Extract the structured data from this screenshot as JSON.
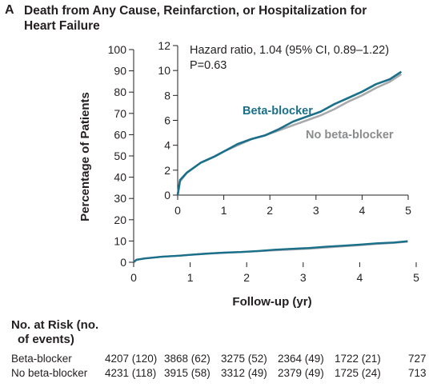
{
  "panel": {
    "letter": "A",
    "title": "Death from Any Cause, Reinfarction, or Hospitalization for Heart Failure"
  },
  "chart_data": {
    "type": "line",
    "title": "Death from Any Cause, Reinfarction, or Hospitalization for Heart Failure",
    "xlabel": "Follow-up (yr)",
    "ylabel": "Percentage of Patients",
    "xlim": [
      0,
      5
    ],
    "ylim": [
      0,
      100
    ],
    "xticks": [
      "0",
      "1",
      "2",
      "3",
      "4",
      "5"
    ],
    "yticks": [
      "0",
      "10",
      "20",
      "30",
      "40",
      "50",
      "60",
      "70",
      "80",
      "90",
      "100"
    ],
    "series": [
      {
        "name": "Beta-blocker",
        "color": "#1a6f8a",
        "x": [
          0,
          0.05,
          0.2,
          0.5,
          0.8,
          1.0,
          1.3,
          1.6,
          1.9,
          2.2,
          2.5,
          2.8,
          3.1,
          3.4,
          3.7,
          4.0,
          4.3,
          4.6,
          4.85
        ],
        "y": [
          0,
          1.2,
          1.8,
          2.6,
          3.1,
          3.5,
          4.1,
          4.5,
          4.8,
          5.3,
          5.9,
          6.3,
          6.7,
          7.3,
          7.8,
          8.3,
          8.9,
          9.3,
          9.9
        ]
      },
      {
        "name": "No beta-blocker",
        "color": "#a7a9ac",
        "x": [
          0,
          0.05,
          0.2,
          0.5,
          0.8,
          1.0,
          1.3,
          1.6,
          1.9,
          2.2,
          2.5,
          2.8,
          3.1,
          3.4,
          3.7,
          4.0,
          4.3,
          4.6,
          4.85
        ],
        "y": [
          0,
          1.1,
          1.8,
          2.6,
          3.1,
          3.5,
          4.0,
          4.5,
          4.8,
          5.2,
          5.6,
          6.0,
          6.4,
          6.9,
          7.5,
          8.0,
          8.6,
          9.1,
          9.7
        ]
      }
    ],
    "inset": {
      "xlim": [
        0,
        5
      ],
      "ylim": [
        0,
        12
      ],
      "xticks": [
        "0",
        "1",
        "2",
        "3",
        "4",
        "5"
      ],
      "yticks": [
        "0",
        "2",
        "4",
        "6",
        "8",
        "10",
        "12"
      ],
      "annotation_line1": "Hazard ratio, 1.04 (95% CI, 0.89–1.22)",
      "annotation_line2": "P=0.63",
      "label_beta": "Beta-blocker",
      "label_nobeta": "No beta-blocker"
    }
  },
  "risk_table": {
    "title_line1": "No. at Risk (no.",
    "title_line2": "of events)",
    "rows": [
      {
        "label": "Beta-blocker",
        "cells": [
          "4207 (120)",
          "3868 (62)",
          "3275 (52)",
          "2364 (49)",
          "1722 (21)",
          "727"
        ]
      },
      {
        "label": "No beta-blocker",
        "cells": [
          "4231 (118)",
          "3915 (58)",
          "3312 (49)",
          "2379 (49)",
          "1725 (24)",
          "713"
        ]
      }
    ]
  }
}
